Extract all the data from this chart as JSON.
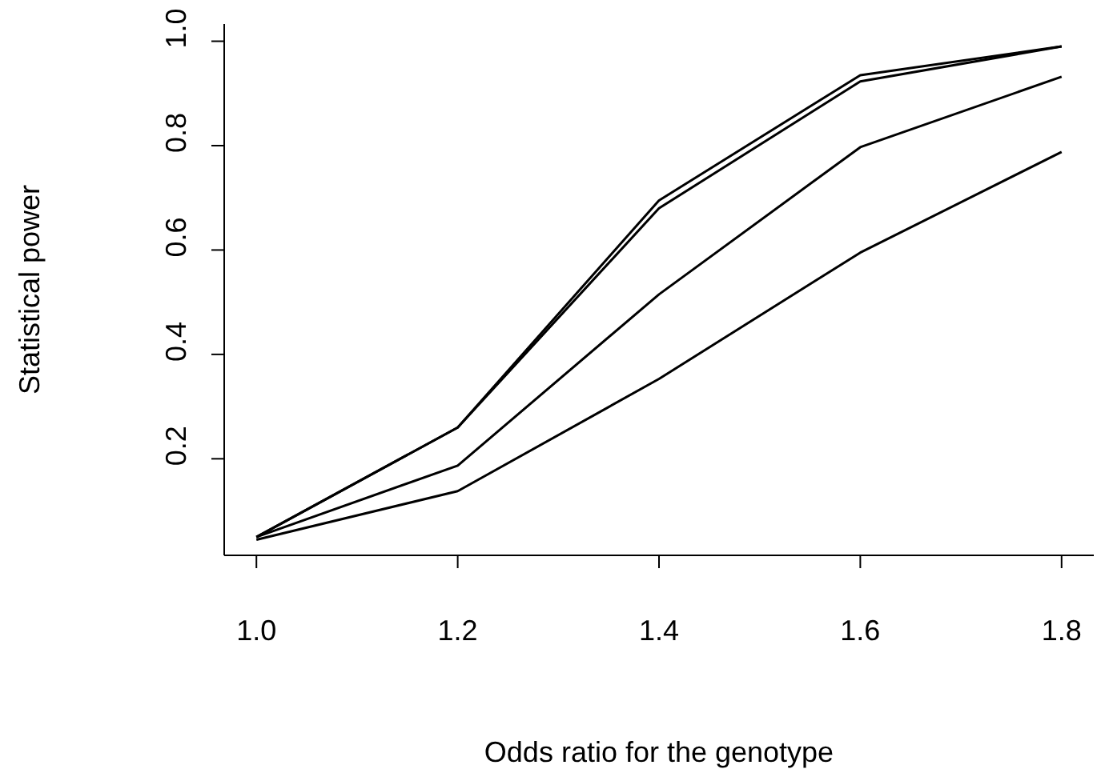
{
  "chart_data": {
    "type": "line",
    "xlabel": "Odds ratio for the genotype",
    "ylabel": "Statistical power",
    "x": [
      1.0,
      1.2,
      1.4,
      1.6,
      1.8
    ],
    "series": [
      {
        "color": "#000000",
        "values": [
          0.05,
          0.26,
          0.695,
          0.935,
          0.99
        ]
      },
      {
        "color": "#000000",
        "values": [
          0.05,
          0.26,
          0.68,
          0.923,
          0.99
        ]
      },
      {
        "color": "#000000",
        "values": [
          0.05,
          0.187,
          0.515,
          0.797,
          0.932
        ]
      },
      {
        "color": "#000000",
        "values": [
          0.045,
          0.138,
          0.353,
          0.595,
          0.788
        ]
      }
    ],
    "xlim": [
      0.968,
      1.832
    ],
    "xticks": [
      {
        "value": 1.0,
        "label": "1.0"
      },
      {
        "value": 1.2,
        "label": "1.2"
      },
      {
        "value": 1.4,
        "label": "1.4"
      },
      {
        "value": 1.6,
        "label": "1.6"
      },
      {
        "value": 1.8,
        "label": "1.8"
      }
    ],
    "ylim": [
      0.015,
      1.033
    ],
    "yticks": [
      {
        "value": 0.2,
        "label": "0.2"
      },
      {
        "value": 0.4,
        "label": "0.4"
      },
      {
        "value": 0.6,
        "label": "0.6"
      },
      {
        "value": 0.8,
        "label": "0.8"
      },
      {
        "value": 1.0,
        "label": "1.0"
      }
    ],
    "grid": false,
    "legend": false,
    "marker": "none",
    "line_style": "solid"
  }
}
